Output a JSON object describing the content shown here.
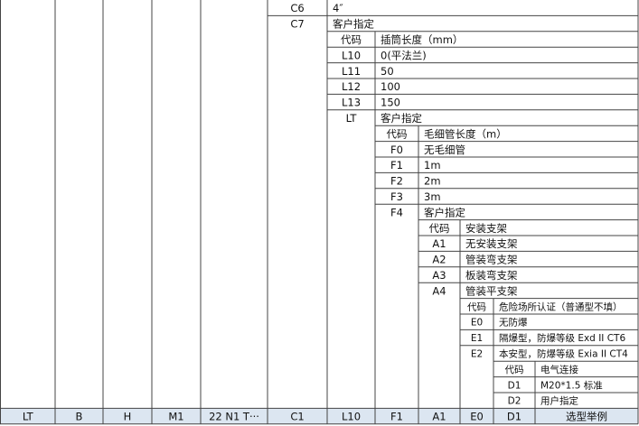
{
  "table": {
    "blocks": [
      {
        "rows": [
          [
            "C6",
            "4″"
          ],
          [
            "C7",
            "客户指定"
          ]
        ]
      },
      {
        "header": [
          "代码",
          "插筒长度（mm）"
        ],
        "rows": [
          [
            "L10",
            "0(平法兰)"
          ],
          [
            "L11",
            "50"
          ],
          [
            "L12",
            "100"
          ],
          [
            "L13",
            "150"
          ],
          [
            "LT",
            "客户指定"
          ]
        ]
      },
      {
        "header": [
          "代码",
          "毛细管长度（m）"
        ],
        "rows": [
          [
            "F0",
            "无毛细管"
          ],
          [
            "F1",
            "1m"
          ],
          [
            "F2",
            "2m"
          ],
          [
            "F3",
            "3m"
          ],
          [
            "F4",
            "客户指定"
          ]
        ]
      },
      {
        "header": [
          "代码",
          "安装支架"
        ],
        "rows": [
          [
            "A1",
            "无安装支架"
          ],
          [
            "A2",
            "管装弯支架"
          ],
          [
            "A3",
            "板装弯支架"
          ],
          [
            "A4",
            "管装平支架"
          ]
        ]
      },
      {
        "header": [
          "代码",
          "危险场所认证（普通型不填）"
        ],
        "rows": [
          [
            "E0",
            "无防爆"
          ],
          [
            "E1",
            "隔爆型，防爆等级 Exd II CT6"
          ],
          [
            "E2",
            "本安型，防爆等级 Exia II CT4"
          ]
        ]
      },
      {
        "header": [
          "代码",
          "电气连接"
        ],
        "rows": [
          [
            "D1",
            "M20*1.5 标准"
          ],
          [
            "D2",
            "用户指定"
          ]
        ]
      }
    ],
    "footer": [
      "LT",
      "B",
      "H",
      "M1",
      "22 N1 T···",
      "C1",
      "L10",
      "F1",
      "A1",
      "E0",
      "D1",
      "选型举例"
    ]
  }
}
